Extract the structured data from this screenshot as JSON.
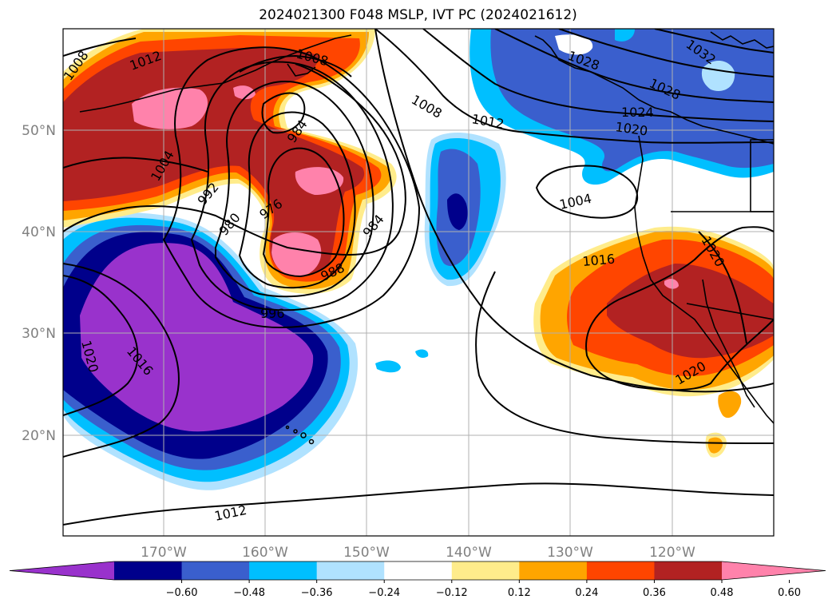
{
  "title": "2024021300 F048 MSLP, IVT PC (2024021612)",
  "axes": {
    "lon_labels": [
      "170°W",
      "160°W",
      "150°W",
      "140°W",
      "130°W",
      "120°W"
    ],
    "lat_labels": [
      "50°N",
      "40°N",
      "30°N",
      "20°N"
    ]
  },
  "isobar_labels": [
    "1008",
    "1012",
    "1008",
    "1004",
    "992",
    "980",
    "976",
    "984",
    "988",
    "996",
    "984",
    "1016",
    "1020",
    "1012",
    "1008",
    "1012",
    "1004",
    "1016",
    "1020",
    "1020",
    "1024",
    "1028",
    "1028",
    "1032",
    "1020"
  ],
  "colorbar": {
    "tick_labels": [
      "−0.60",
      "−0.48",
      "−0.36",
      "−0.24",
      "−0.12",
      "0.12",
      "0.24",
      "0.36",
      "0.48",
      "0.60"
    ],
    "colors": [
      "#9932cc",
      "#00008b",
      "#3a5fcd",
      "#00bfff",
      "#b0e2ff",
      "#ffffff",
      "#ffec8b",
      "#ffa500",
      "#ff4500",
      "#b22222",
      "#ff82ab"
    ]
  }
}
